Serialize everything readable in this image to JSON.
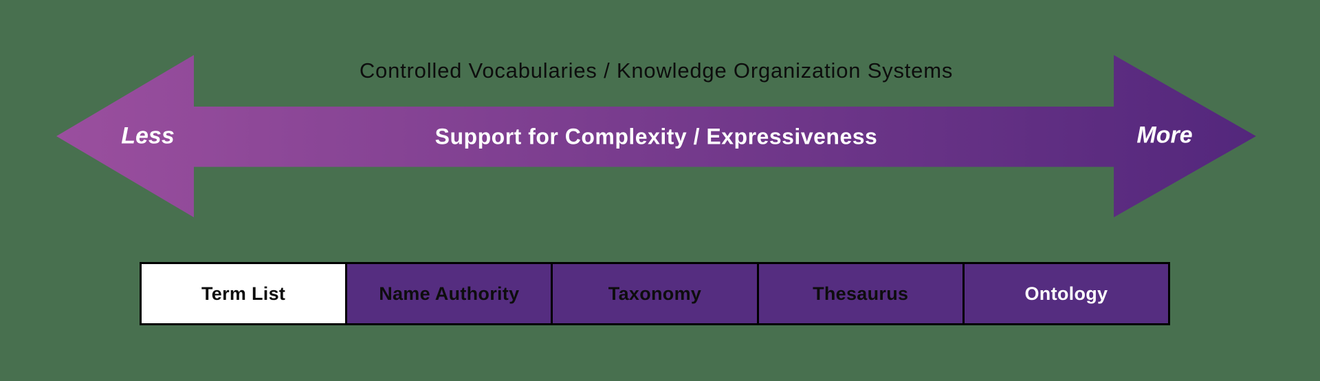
{
  "title": "Controlled Vocabularies / Knowledge Organization Systems",
  "arrow": {
    "left_label": "Less",
    "right_label": "More",
    "center_label": "Support for Complexity / Expressiveness",
    "gradient_start": "#9A4F9E",
    "gradient_end": "#53277C"
  },
  "spectrum_boxes": [
    {
      "label": "Term List",
      "bg": "#FFFFFF",
      "fg": "#0D0D0D"
    },
    {
      "label": "Name Authority",
      "bg": "#552D80",
      "fg": "#0D0D0D"
    },
    {
      "label": "Taxonomy",
      "bg": "#552D80",
      "fg": "#0D0D0D"
    },
    {
      "label": "Thesaurus",
      "bg": "#552D80",
      "fg": "#0D0D0D"
    },
    {
      "label": "Ontology",
      "bg": "#552D80",
      "fg": "#FFFFFF"
    }
  ],
  "colors": {
    "background": "#48704F",
    "title_text": "#0D0D0D",
    "arrow_text": "#FFFFFF",
    "box_border": "#000000"
  }
}
